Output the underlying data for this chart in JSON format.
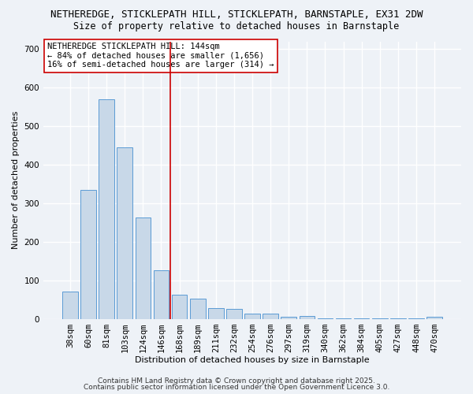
{
  "title1": "NETHEREDGE, STICKLEPATH HILL, STICKLEPATH, BARNSTAPLE, EX31 2DW",
  "title2": "Size of property relative to detached houses in Barnstaple",
  "xlabel": "Distribution of detached houses by size in Barnstaple",
  "ylabel": "Number of detached properties",
  "categories": [
    "38sqm",
    "60sqm",
    "81sqm",
    "103sqm",
    "124sqm",
    "146sqm",
    "168sqm",
    "189sqm",
    "211sqm",
    "232sqm",
    "254sqm",
    "276sqm",
    "297sqm",
    "319sqm",
    "340sqm",
    "362sqm",
    "384sqm",
    "405sqm",
    "427sqm",
    "448sqm",
    "470sqm"
  ],
  "values": [
    70,
    335,
    570,
    445,
    263,
    125,
    63,
    52,
    28,
    25,
    13,
    13,
    5,
    7,
    2,
    1,
    1,
    1,
    1,
    1,
    5
  ],
  "bar_color": "#c8d8e8",
  "bar_edge_color": "#5b9bd5",
  "vline_x": 5.5,
  "vline_color": "#cc0000",
  "annotation_text": "NETHEREDGE STICKLEPATH HILL: 144sqm\n← 84% of detached houses are smaller (1,656)\n16% of semi-detached houses are larger (314) →",
  "annotation_box_color": "white",
  "annotation_box_edge": "#cc0000",
  "ylim": [
    0,
    720
  ],
  "yticks": [
    0,
    100,
    200,
    300,
    400,
    500,
    600,
    700
  ],
  "footer1": "Contains HM Land Registry data © Crown copyright and database right 2025.",
  "footer2": "Contains public sector information licensed under the Open Government Licence 3.0.",
  "bg_color": "#eef2f7",
  "grid_color": "#ffffff",
  "title_fontsize": 9,
  "subtitle_fontsize": 8.5,
  "axis_label_fontsize": 8,
  "tick_fontsize": 7.5,
  "annotation_fontsize": 7.5,
  "footer_fontsize": 6.5
}
